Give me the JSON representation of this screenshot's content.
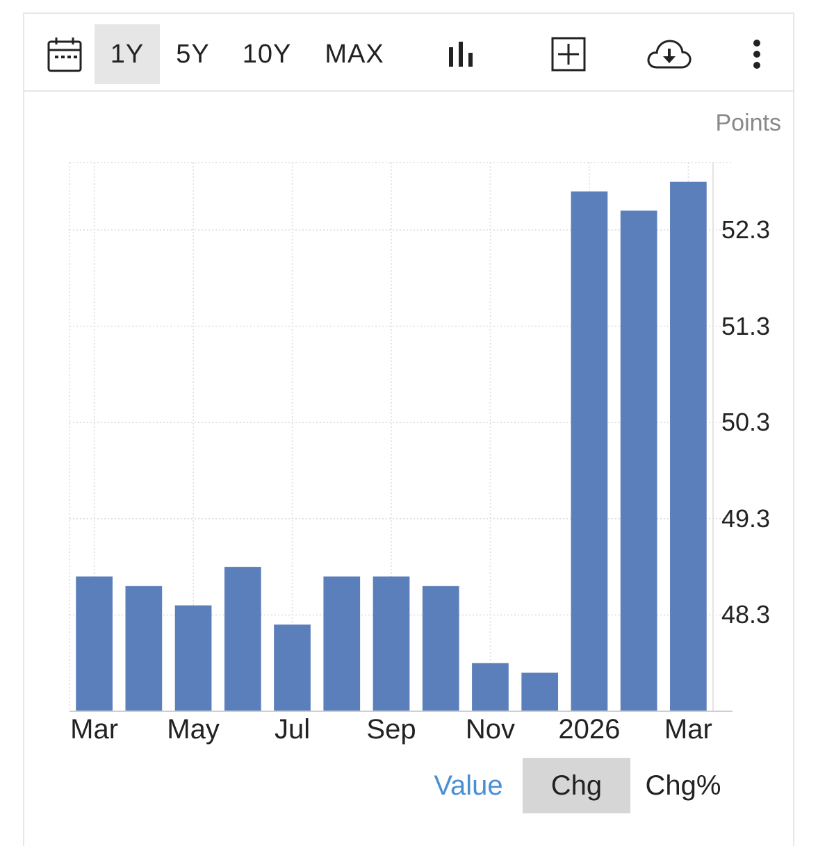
{
  "toolbar": {
    "calendar_icon": "calendar-icon",
    "ranges": [
      {
        "label": "1Y",
        "active": true
      },
      {
        "label": "5Y",
        "active": false
      },
      {
        "label": "10Y",
        "active": false
      },
      {
        "label": "MAX",
        "active": false
      }
    ],
    "chart_type_icon": "bar-chart-icon",
    "compare_icon": "plus-square-icon",
    "download_icon": "cloud-download-icon",
    "more_icon": "more-vertical-icon"
  },
  "chart_data": {
    "type": "bar",
    "unit_label": "Points",
    "x_tick_labels": [
      "Mar",
      "May",
      "Jul",
      "Sep",
      "Nov",
      "2026",
      "Mar"
    ],
    "y_ticks": [
      48.3,
      49.3,
      50.3,
      51.3,
      52.3
    ],
    "ylim": [
      47.3,
      53.0
    ],
    "values": [
      48.7,
      48.6,
      48.4,
      48.8,
      48.2,
      48.7,
      48.7,
      48.6,
      47.8,
      47.7,
      52.7,
      52.5,
      52.8
    ],
    "bar_color": "#5b7fba",
    "grid": true,
    "legend": "none"
  },
  "view_toggle": {
    "options": [
      {
        "label": "Value",
        "active": false
      },
      {
        "label": "Chg",
        "active": true
      },
      {
        "label": "Chg%",
        "active": false
      }
    ],
    "link_color": "#4a8fd4"
  }
}
